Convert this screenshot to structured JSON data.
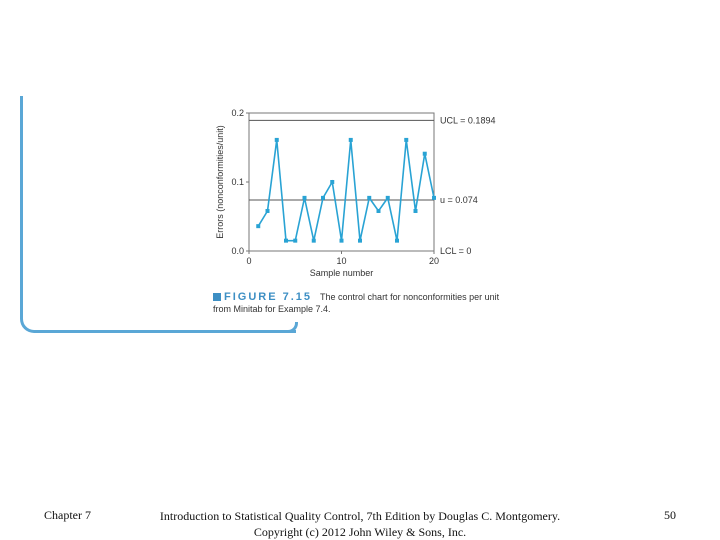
{
  "footer": {
    "chapter": "Chapter 7",
    "citation_line1": "Introduction to Statistical Quality Control, 7th Edition by Douglas C. Montgomery.",
    "citation_line2": "Copyright (c) 2012  John Wiley & Sons, Inc.",
    "page_number": "50"
  },
  "caption": {
    "figure_label": "FIGURE 7.15",
    "text": "The control chart for nonconformities per unit from Minitab for Example 7.4."
  },
  "chart_data": {
    "type": "line",
    "xlabel": "Sample number",
    "ylabel": "Errors (nonconformities/unit)",
    "xlim": [
      0,
      20
    ],
    "ylim": [
      0,
      0.2
    ],
    "x_ticks": [
      "0",
      "10",
      "20"
    ],
    "y_ticks": [
      "0.0",
      "0.1",
      "0.2"
    ],
    "ucl": 0.1894,
    "center": 0.074,
    "lcl": 0,
    "ucl_label": "UCL = 0.1894",
    "center_label": "u = 0.074",
    "lcl_label": "LCL = 0",
    "x": [
      1,
      2,
      3,
      4,
      5,
      6,
      7,
      8,
      9,
      10,
      11,
      12,
      13,
      14,
      15,
      16,
      17,
      18,
      19,
      20
    ],
    "values": [
      0.036,
      0.058,
      0.161,
      0.015,
      0.015,
      0.077,
      0.015,
      0.077,
      0.1,
      0.015,
      0.161,
      0.015,
      0.077,
      0.058,
      0.077,
      0.015,
      0.161,
      0.058,
      0.141,
      0.077
    ],
    "line_color": "#29a3d4",
    "grid": false
  }
}
